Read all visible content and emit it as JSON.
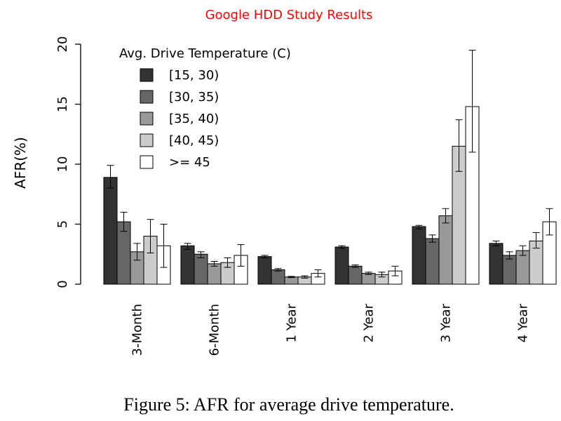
{
  "caption": "Figure 5: AFR for average drive temperature.",
  "chart_data": {
    "type": "bar",
    "title": "Google HDD Study Results",
    "title_color": "#ff0000",
    "ylabel": "AFR(%)",
    "xlabel": "",
    "ylim": [
      0,
      20
    ],
    "yticks": [
      0,
      5,
      10,
      15,
      20
    ],
    "grid": false,
    "legend_title": "Avg. Drive Temperature (C)",
    "legend_position": "top-left",
    "categories": [
      "3-Month",
      "6-Month",
      "1 Year",
      "2 Year",
      "3 Year",
      "4 Year"
    ],
    "series": [
      {
        "name": "[15, 30)",
        "color": "#333333",
        "values": [
          8.9,
          3.2,
          2.3,
          3.1,
          4.8,
          3.4
        ],
        "error_low": [
          8.0,
          2.9,
          2.2,
          3.0,
          4.6,
          3.2
        ],
        "error_high": [
          9.9,
          3.4,
          2.4,
          3.2,
          4.9,
          3.6
        ]
      },
      {
        "name": "[30, 35)",
        "color": "#666666",
        "values": [
          5.2,
          2.5,
          1.2,
          1.5,
          3.8,
          2.4
        ],
        "error_low": [
          4.4,
          2.2,
          1.1,
          1.4,
          3.5,
          2.1
        ],
        "error_high": [
          6.0,
          2.7,
          1.3,
          1.6,
          4.1,
          2.7
        ]
      },
      {
        "name": "[35, 40)",
        "color": "#999999",
        "values": [
          2.7,
          1.7,
          0.6,
          0.9,
          5.7,
          2.8
        ],
        "error_low": [
          2.0,
          1.5,
          0.55,
          0.8,
          5.1,
          2.4
        ],
        "error_high": [
          3.4,
          1.9,
          0.65,
          1.0,
          6.3,
          3.2
        ]
      },
      {
        "name": "[40, 45)",
        "color": "#cccccc",
        "values": [
          4.0,
          1.8,
          0.6,
          0.8,
          11.5,
          3.6
        ],
        "error_low": [
          2.6,
          1.4,
          0.5,
          0.6,
          9.4,
          3.0
        ],
        "error_high": [
          5.4,
          2.2,
          0.7,
          1.0,
          13.7,
          4.3
        ]
      },
      {
        "name": ">= 45",
        "color": "#ffffff",
        "values": [
          3.2,
          2.4,
          0.9,
          1.1,
          14.8,
          5.2
        ],
        "error_low": [
          1.4,
          1.5,
          0.6,
          0.7,
          11.0,
          4.1
        ],
        "error_high": [
          5.0,
          3.3,
          1.2,
          1.5,
          19.5,
          6.3
        ]
      }
    ]
  }
}
